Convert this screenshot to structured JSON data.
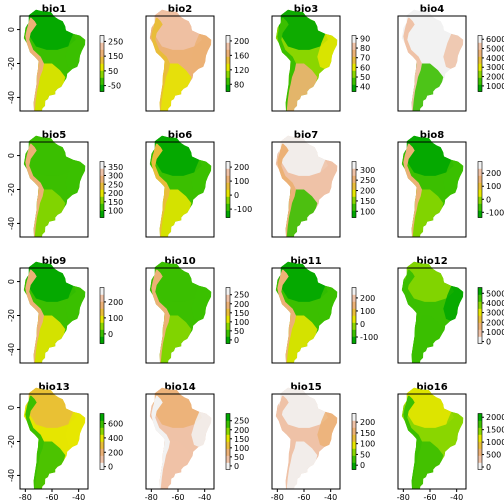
{
  "chart_data": [
    {
      "title": "bio1",
      "type": "heatmap",
      "palette": "terrain",
      "legend_ticks": [
        "250",
        "150",
        "50",
        "-50"
      ],
      "legend_range": [
        -90,
        290
      ],
      "show_y_axis": true,
      "show_x_axis": false
    },
    {
      "title": "bio2",
      "type": "heatmap",
      "palette": "terrain",
      "legend_ticks": [
        "200",
        "160",
        "120",
        "80"
      ],
      "legend_range": [
        60,
        215
      ],
      "show_y_axis": false,
      "show_x_axis": false
    },
    {
      "title": "bio3",
      "type": "heatmap",
      "palette": "terrain",
      "legend_ticks": [
        "90",
        "80",
        "70",
        "60",
        "50",
        "40"
      ],
      "legend_range": [
        35,
        93
      ],
      "show_y_axis": false,
      "show_x_axis": false
    },
    {
      "title": "bio4",
      "type": "heatmap",
      "palette": "terrain",
      "legend_ticks": [
        "6000",
        "5000",
        "4000",
        "3000",
        "2000",
        "1000"
      ],
      "legend_range": [
        400,
        6400
      ],
      "show_y_axis": false,
      "show_x_axis": false
    },
    {
      "title": "bio5",
      "type": "heatmap",
      "palette": "terrain",
      "legend_ticks": [
        "350",
        "300",
        "250",
        "200",
        "150",
        "100"
      ],
      "legend_range": [
        60,
        380
      ],
      "show_y_axis": true,
      "show_x_axis": false
    },
    {
      "title": "bio6",
      "type": "heatmap",
      "palette": "terrain",
      "legend_ticks": [
        "200",
        "100",
        "0",
        "-100"
      ],
      "legend_range": [
        -160,
        240
      ],
      "show_y_axis": false,
      "show_x_axis": false
    },
    {
      "title": "bio7",
      "type": "heatmap",
      "palette": "terrain",
      "legend_ticks": [
        "300",
        "250",
        "200",
        "150",
        "100"
      ],
      "legend_range": [
        70,
        340
      ],
      "show_y_axis": false,
      "show_x_axis": false
    },
    {
      "title": "bio8",
      "type": "heatmap",
      "palette": "terrain",
      "legend_ticks": [
        "200",
        "100",
        "0",
        "-100"
      ],
      "legend_range": [
        -140,
        290
      ],
      "show_y_axis": false,
      "show_x_axis": false
    },
    {
      "title": "bio9",
      "type": "heatmap",
      "palette": "terrain",
      "legend_ticks": [
        "200",
        "100",
        "0"
      ],
      "legend_range": [
        -60,
        290
      ],
      "show_y_axis": true,
      "show_x_axis": false
    },
    {
      "title": "bio10",
      "type": "heatmap",
      "palette": "terrain",
      "legend_ticks": [
        "250",
        "200",
        "150",
        "100",
        "50",
        "0"
      ],
      "legend_range": [
        -20,
        290
      ],
      "show_y_axis": false,
      "show_x_axis": false
    },
    {
      "title": "bio11",
      "type": "heatmap",
      "palette": "terrain",
      "legend_ticks": [
        "200",
        "100",
        "0",
        "-100"
      ],
      "legend_range": [
        -150,
        280
      ],
      "show_y_axis": false,
      "show_x_axis": false
    },
    {
      "title": "bio12",
      "type": "heatmap",
      "palette": "terrain_rev",
      "legend_ticks": [
        "5000",
        "4000",
        "3000",
        "2000",
        "1000",
        "0"
      ],
      "legend_range": [
        -200,
        5600
      ],
      "show_y_axis": false,
      "show_x_axis": false
    },
    {
      "title": "bio13",
      "type": "heatmap",
      "palette": "terrain_rev",
      "legend_ticks": [
        "600",
        "400",
        "200",
        "0"
      ],
      "legend_range": [
        -40,
        740
      ],
      "show_y_axis": true,
      "show_x_axis": true
    },
    {
      "title": "bio14",
      "type": "heatmap",
      "palette": "terrain_rev",
      "legend_ticks": [
        "250",
        "200",
        "150",
        "100",
        "50",
        "0"
      ],
      "legend_range": [
        -20,
        290
      ],
      "show_y_axis": false,
      "show_x_axis": true
    },
    {
      "title": "bio15",
      "type": "heatmap",
      "palette": "terrain",
      "legend_ticks": [
        "200",
        "150",
        "100",
        "50",
        "0"
      ],
      "legend_range": [
        -20,
        240
      ],
      "show_y_axis": false,
      "show_x_axis": true
    },
    {
      "title": "bio16",
      "type": "heatmap",
      "palette": "terrain_rev",
      "legend_ticks": [
        "2000",
        "1500",
        "1000",
        "500",
        "0"
      ],
      "legend_range": [
        -100,
        2150
      ],
      "show_y_axis": false,
      "show_x_axis": true
    }
  ],
  "axes": {
    "x_ticks": [
      "-80",
      "-60",
      "-40"
    ],
    "x_range": [
      -84,
      -33
    ],
    "y_ticks": [
      "0",
      "-20",
      "-40"
    ],
    "y_range": [
      -48,
      8
    ]
  }
}
